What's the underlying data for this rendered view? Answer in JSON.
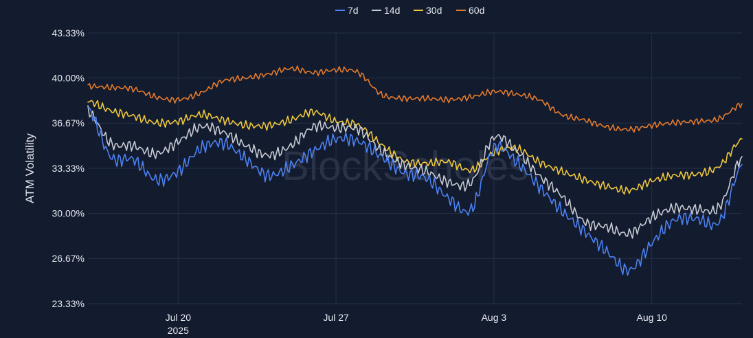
{
  "watermark": "BlockScholes",
  "chart_data": {
    "type": "line",
    "title": "",
    "xlabel": "",
    "ylabel": "ATM Volatility",
    "ylim": [
      23.33,
      43.33
    ],
    "y_ticks": [
      "43.33%",
      "40.00%",
      "36.67%",
      "33.33%",
      "30.00%",
      "26.67%",
      "23.33%"
    ],
    "y_tick_values": [
      43.33,
      40.0,
      36.67,
      33.33,
      30.0,
      26.67,
      23.33
    ],
    "x_range": [
      "2025-07-16",
      "2025-08-14"
    ],
    "x_ticks": [
      {
        "date": "2025-07-20",
        "label": "Jul 20",
        "sublabel": "2025"
      },
      {
        "date": "2025-07-27",
        "label": "Jul 27",
        "sublabel": ""
      },
      {
        "date": "2025-08-03",
        "label": "Aug 3",
        "sublabel": ""
      },
      {
        "date": "2025-08-10",
        "label": "Aug 10",
        "sublabel": ""
      }
    ],
    "grid": true,
    "legend_position": "top-center",
    "x": [
      "2025-07-16",
      "2025-07-17",
      "2025-07-18",
      "2025-07-19",
      "2025-07-20",
      "2025-07-21",
      "2025-07-22",
      "2025-07-23",
      "2025-07-24",
      "2025-07-25",
      "2025-07-26",
      "2025-07-27",
      "2025-07-28",
      "2025-07-29",
      "2025-07-30",
      "2025-07-31",
      "2025-08-01",
      "2025-08-02",
      "2025-08-03",
      "2025-08-04",
      "2025-08-05",
      "2025-08-06",
      "2025-08-07",
      "2025-08-08",
      "2025-08-09",
      "2025-08-10",
      "2025-08-11",
      "2025-08-12",
      "2025-08-13",
      "2025-08-14"
    ],
    "series": [
      {
        "name": "7d",
        "color": "#4c82f2",
        "values": [
          37.8,
          34.2,
          34.0,
          32.5,
          33.1,
          34.8,
          35.2,
          34.0,
          32.8,
          33.5,
          34.6,
          35.5,
          35.3,
          34.2,
          33.0,
          32.6,
          31.1,
          30.3,
          34.8,
          33.8,
          32.0,
          30.2,
          28.7,
          27.2,
          25.8,
          27.8,
          29.5,
          29.6,
          29.4,
          33.6
        ]
      },
      {
        "name": "14d",
        "color": "#c7cbd4",
        "values": [
          37.6,
          35.2,
          35.0,
          34.4,
          35.3,
          36.4,
          36.0,
          35.0,
          34.3,
          35.0,
          36.4,
          36.3,
          36.2,
          34.6,
          33.6,
          33.1,
          32.3,
          32.3,
          35.6,
          34.6,
          32.8,
          31.3,
          29.4,
          29.0,
          28.5,
          29.7,
          30.4,
          30.3,
          30.5,
          34.2
        ]
      },
      {
        "name": "30d",
        "color": "#eec83c",
        "values": [
          38.3,
          37.6,
          37.2,
          36.7,
          36.8,
          37.3,
          36.9,
          36.5,
          36.5,
          36.9,
          37.5,
          36.8,
          36.5,
          35.1,
          33.9,
          33.7,
          33.8,
          33.2,
          34.5,
          34.8,
          33.8,
          33.1,
          32.5,
          32.0,
          31.7,
          32.4,
          32.8,
          32.9,
          33.5,
          35.5
        ]
      },
      {
        "name": "60d",
        "color": "#e47a2b",
        "values": [
          39.4,
          39.3,
          39.2,
          38.6,
          38.4,
          38.9,
          39.8,
          40.0,
          40.3,
          40.7,
          40.4,
          40.6,
          40.4,
          38.8,
          38.5,
          38.5,
          38.4,
          38.6,
          39.0,
          38.8,
          38.4,
          37.3,
          36.9,
          36.4,
          36.2,
          36.5,
          36.7,
          36.8,
          37.0,
          38.1
        ]
      }
    ]
  }
}
